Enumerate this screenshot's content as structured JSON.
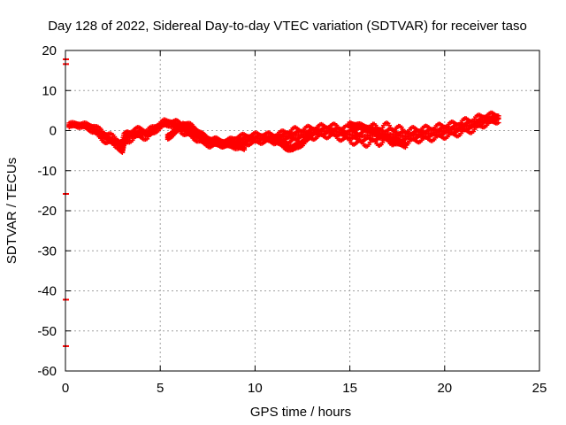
{
  "chart_data": {
    "type": "scatter",
    "title": "Day 128 of 2022, Sidereal Day-to-day VTEC variation (SDTVAR) for receiver taso",
    "xlabel": "GPS time / hours",
    "ylabel": "SDTVAR / TECUs",
    "xlim": [
      0,
      25
    ],
    "ylim": [
      -60,
      20
    ],
    "xticks": [
      0,
      5,
      10,
      15,
      20,
      25
    ],
    "yticks": [
      20,
      10,
      0,
      -10,
      -20,
      -30,
      -40,
      -50,
      -60
    ],
    "xtick_labels": [
      "0",
      "5",
      "10",
      "15",
      "20",
      "25"
    ],
    "ytick_labels": [
      "20",
      "10",
      "0",
      "-10",
      "-20",
      "-30",
      "-40",
      "-50",
      "-60"
    ],
    "grid": true,
    "legend": "none",
    "series": [
      {
        "name": "SDTVAR",
        "color": "#ff0000",
        "marker": "plus",
        "outliers": [
          {
            "x": 0.0,
            "y": 17.8
          },
          {
            "x": 0.0,
            "y": 16.6
          },
          {
            "x": 0.0,
            "y": -15.8
          },
          {
            "x": 0.0,
            "y": -42.2
          },
          {
            "x": 0.0,
            "y": -53.8
          }
        ],
        "bands": [
          {
            "x": [
              0.2,
              0.5,
              1.0,
              1.5,
              1.8,
              2.2,
              2.5,
              2.8,
              3.0,
              3.1,
              3.3,
              3.6,
              4.0,
              4.3,
              4.6,
              4.9,
              5.2,
              5.5,
              5.8,
              6.2,
              6.6,
              7.0,
              7.3,
              7.6,
              8.0,
              8.5,
              9.0,
              9.5,
              10.0,
              10.5,
              11.0,
              11.5,
              12.0,
              12.5,
              13.0,
              13.5,
              14.0,
              14.5,
              15.0,
              15.5,
              16.0,
              16.5,
              17.0,
              17.5,
              18.0,
              18.5,
              19.0,
              19.5,
              20.0,
              20.5,
              21.0,
              21.5,
              22.0,
              22.5,
              22.9
            ],
            "y": [
              1.3,
              1.5,
              1.2,
              0.5,
              -0.8,
              -1.8,
              -2.5,
              -3.2,
              -4.5,
              -2.5,
              -1.5,
              -0.8,
              -0.5,
              -1.0,
              0.0,
              1.0,
              1.8,
              1.9,
              1.5,
              0.5,
              -0.5,
              -1.5,
              -2.5,
              -2.8,
              -3.0,
              -3.2,
              -2.6,
              -2.2,
              -2.0,
              -1.8,
              -2.0,
              -1.5,
              -1.2,
              -1.0,
              -0.5,
              -0.2,
              0.0,
              -0.5,
              -1.0,
              -1.5,
              -1.2,
              -1.0,
              -0.8,
              -1.2,
              -1.5,
              -1.0,
              -0.8,
              -0.5,
              0.0,
              0.3,
              1.0,
              1.5,
              2.5,
              3.0,
              3.2
            ],
            "spread": [
              0.8,
              0.6,
              0.8,
              1.2,
              1.5,
              1.6,
              1.5,
              1.4,
              2.0,
              1.8,
              1.8,
              1.5,
              1.5,
              1.5,
              1.2,
              1.0,
              1.0,
              0.9,
              1.2,
              1.5,
              1.5,
              1.4,
              1.4,
              1.4,
              1.2,
              1.0,
              1.5,
              1.5,
              1.5,
              1.4,
              1.4,
              1.6,
              2.0,
              2.0,
              1.8,
              1.8,
              1.8,
              2.0,
              2.2,
              2.5,
              2.8,
              2.8,
              2.8,
              2.5,
              2.2,
              2.0,
              2.0,
              2.0,
              2.0,
              2.0,
              2.0,
              2.0,
              1.8,
              1.5,
              1.2
            ]
          },
          {
            "x": [
              5.4,
              5.8,
              6.2,
              6.6,
              7.0,
              7.4,
              8.0,
              8.6,
              9.2,
              9.5
            ],
            "y": [
              -1.5,
              -0.2,
              1.5,
              1.0,
              -0.5,
              -2.0,
              -3.0,
              -3.5,
              -4.0,
              -4.5
            ],
            "spread": [
              0.8,
              0.8,
              0.8,
              0.8,
              0.8,
              0.8,
              0.8,
              0.8,
              0.8,
              0.8
            ]
          },
          {
            "x": [
              11.0,
              11.3,
              11.6,
              12.0,
              12.5,
              13.0
            ],
            "y": [
              -2.0,
              -3.0,
              -4.0,
              -4.5,
              -3.0,
              -1.0
            ],
            "spread": [
              0.8,
              0.8,
              0.8,
              0.8,
              0.8,
              0.8
            ]
          },
          {
            "x": [
              15.0,
              15.5,
              16.0,
              16.5,
              17.0,
              17.5,
              18.0
            ],
            "y": [
              1.5,
              1.0,
              0.5,
              -1.0,
              -2.0,
              -3.0,
              -3.5
            ],
            "spread": [
              0.8,
              0.8,
              0.8,
              0.8,
              0.8,
              0.8,
              0.8
            ]
          }
        ]
      }
    ]
  }
}
